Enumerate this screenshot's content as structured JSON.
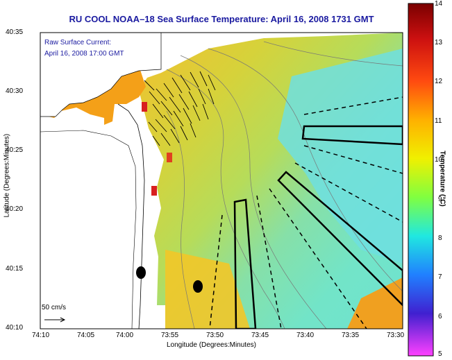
{
  "title": "RU COOL  NOAA–18  Sea Surface Temperature:  April 16, 2008 1731 GMT",
  "legend": {
    "line1": "Raw Surface Current:",
    "line2": "April 16, 2008 17:00 GMT",
    "scale_label": "50 cm/s"
  },
  "axes": {
    "xlabel": "Longitude (Degrees:Minutes)",
    "ylabel": "Latitude (Degrees:Minutes)",
    "x_ticks": [
      "74:10",
      "74:05",
      "74:00",
      "73:55",
      "73:50",
      "73:45",
      "73:40",
      "73:35",
      "73:30"
    ],
    "y_ticks": [
      "40:35",
      "40:30",
      "40:25",
      "40:20",
      "40:15",
      "40:10"
    ]
  },
  "colorbar": {
    "label": "Temperature (°C)",
    "min": 5,
    "max": 14,
    "ticks": [
      "14",
      "13",
      "12",
      "11",
      "10",
      "9",
      "8",
      "7",
      "6",
      "5"
    ]
  }
}
